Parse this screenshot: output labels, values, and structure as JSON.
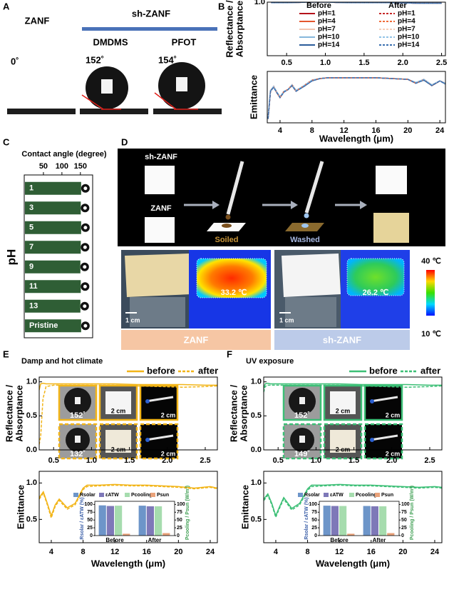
{
  "panel_labels": [
    "A",
    "B",
    "C",
    "D",
    "E",
    "F"
  ],
  "panel_a": {
    "uncoated": "ZANF",
    "coated": "sh-ZANF",
    "agents": [
      "DMDMS",
      "PFOT"
    ],
    "angles": [
      "0˚",
      "152˚",
      "154˚"
    ]
  },
  "panel_d": {
    "sample_labels": [
      "sh-ZANF",
      "ZANF"
    ],
    "steps": [
      "Soiled",
      "Washed"
    ],
    "temperatures": [
      "33.2 ℃",
      "26.2 ℃"
    ],
    "scale_bars": [
      "1 cm",
      "1 cm"
    ],
    "colorbar": [
      "40 ℃",
      "10 ℃"
    ],
    "captions": [
      "ZANF",
      "sh-ZANF"
    ]
  },
  "panel_e": {
    "angles": [
      "152˚",
      "132˚"
    ],
    "scales": [
      "2 cm",
      "2 cm",
      "2 cm",
      "2 cm"
    ]
  },
  "panel_f": {
    "angles": [
      "152˚",
      "149˚"
    ],
    "scales": [
      "2 cm",
      "2 cm",
      "2 cm",
      "2 cm"
    ]
  },
  "chart_data": [
    {
      "type": "line",
      "x": [
        0.3,
        0.5,
        0.8,
        1.0,
        1.3,
        1.6,
        1.9,
        2.2,
        2.5
      ],
      "xlim": [
        0.25,
        2.55
      ],
      "xticks": [
        0.5,
        {
          "value": 1,
          "label": "1.0"
        },
        1.5,
        {
          "value": 2,
          "label": "2.0"
        },
        2.5
      ],
      "ylim": [
        0,
        1
      ],
      "yticks": [
        {
          "value": 1,
          "label": "1.0"
        }
      ],
      "ylabel": [
        "Reflectance /",
        "Absorptance"
      ],
      "legend_groups": [
        "Before",
        "After"
      ],
      "series": [
        {
          "name": "pH=1",
          "color": "#b5121b",
          "values": [
            0.99,
            0.99,
            1.0,
            1.0,
            0.99,
            0.99,
            0.99,
            0.98,
            0.98
          ]
        },
        {
          "name": "pH=4",
          "color": "#e4572e",
          "values": [
            0.99,
            0.99,
            1.0,
            1.0,
            0.99,
            0.99,
            0.99,
            0.98,
            0.98
          ]
        },
        {
          "name": "pH=7",
          "color": "#f1c4b0",
          "values": [
            0.99,
            0.99,
            1.0,
            1.0,
            0.99,
            0.99,
            0.99,
            0.98,
            0.98
          ]
        },
        {
          "name": "pH=10",
          "color": "#86b7db",
          "values": [
            0.99,
            0.99,
            1.0,
            1.0,
            0.99,
            0.99,
            0.99,
            0.98,
            0.98
          ]
        },
        {
          "name": "pH=14",
          "color": "#2b5d9b",
          "values": [
            0.99,
            0.99,
            1.0,
            1.0,
            0.99,
            0.99,
            0.99,
            0.98,
            0.98
          ]
        },
        {
          "name": "pH=1",
          "color": "#c62828",
          "dash": true,
          "values": [
            0.99,
            0.99,
            1.0,
            1.0,
            0.99,
            0.99,
            0.99,
            0.98,
            0.98
          ]
        },
        {
          "name": "pH=4",
          "color": "#ef6c3a",
          "dash": true,
          "values": [
            0.99,
            0.99,
            1.0,
            1.0,
            0.99,
            0.99,
            0.99,
            0.98,
            0.98
          ]
        },
        {
          "name": "pH=7",
          "color": "#f5cdb8",
          "dash": true,
          "values": [
            0.99,
            0.99,
            1.0,
            1.0,
            0.99,
            0.99,
            0.99,
            0.98,
            0.98
          ]
        },
        {
          "name": "pH=10",
          "color": "#92c3e6",
          "dash": true,
          "values": [
            0.99,
            0.99,
            1.0,
            1.0,
            0.99,
            0.99,
            0.99,
            0.98,
            0.98
          ]
        },
        {
          "name": "pH=14",
          "color": "#3a6fb0",
          "dash": true,
          "values": [
            0.99,
            0.99,
            1.0,
            1.0,
            0.99,
            0.99,
            0.99,
            0.98,
            0.98
          ]
        }
      ]
    },
    {
      "type": "line",
      "x": [
        2.5,
        2.8,
        3.2,
        3.6,
        4,
        4.5,
        5,
        5.5,
        6,
        7,
        8,
        9,
        10,
        12,
        14,
        16,
        18,
        20,
        21,
        22,
        23,
        24,
        24.7
      ],
      "xlim": [
        2.4,
        24.7
      ],
      "xticks": [
        4,
        8,
        12,
        16,
        20,
        24
      ],
      "ylim": [
        0.4,
        1.05
      ],
      "xlabel": "Wavelength (μm)",
      "ylabel": [
        "Emittance"
      ],
      "series": [
        {
          "color": "#b5121b",
          "values": [
            0.45,
            0.8,
            0.86,
            0.78,
            0.72,
            0.8,
            0.82,
            0.88,
            0.8,
            0.87,
            0.94,
            0.96,
            0.97,
            0.97,
            0.97,
            0.97,
            0.96,
            0.95,
            0.9,
            0.95,
            0.87,
            0.93,
            0.9
          ]
        },
        {
          "color": "#e4572e",
          "values": [
            0.45,
            0.8,
            0.86,
            0.78,
            0.72,
            0.8,
            0.82,
            0.88,
            0.8,
            0.87,
            0.94,
            0.96,
            0.97,
            0.97,
            0.97,
            0.97,
            0.96,
            0.95,
            0.9,
            0.95,
            0.87,
            0.93,
            0.9
          ]
        },
        {
          "color": "#f1c4b0",
          "values": [
            0.46,
            0.81,
            0.86,
            0.79,
            0.73,
            0.8,
            0.82,
            0.88,
            0.81,
            0.87,
            0.94,
            0.96,
            0.97,
            0.97,
            0.97,
            0.97,
            0.96,
            0.95,
            0.91,
            0.95,
            0.88,
            0.93,
            0.9
          ]
        },
        {
          "color": "#86b7db",
          "values": [
            0.46,
            0.81,
            0.86,
            0.79,
            0.73,
            0.8,
            0.82,
            0.88,
            0.81,
            0.87,
            0.94,
            0.96,
            0.97,
            0.97,
            0.97,
            0.97,
            0.96,
            0.95,
            0.91,
            0.95,
            0.88,
            0.93,
            0.9
          ]
        },
        {
          "color": "#2b5d9b",
          "values": [
            0.45,
            0.8,
            0.85,
            0.78,
            0.72,
            0.79,
            0.82,
            0.87,
            0.8,
            0.86,
            0.93,
            0.96,
            0.97,
            0.97,
            0.97,
            0.97,
            0.96,
            0.95,
            0.9,
            0.94,
            0.87,
            0.93,
            0.89
          ]
        },
        {
          "color": "#c62828",
          "dash": true,
          "values": [
            0.45,
            0.8,
            0.86,
            0.78,
            0.72,
            0.8,
            0.82,
            0.88,
            0.8,
            0.87,
            0.94,
            0.96,
            0.97,
            0.97,
            0.97,
            0.97,
            0.96,
            0.95,
            0.9,
            0.95,
            0.87,
            0.93,
            0.9
          ]
        },
        {
          "color": "#ef6c3a",
          "dash": true,
          "values": [
            0.45,
            0.8,
            0.86,
            0.78,
            0.72,
            0.8,
            0.82,
            0.88,
            0.8,
            0.87,
            0.94,
            0.96,
            0.97,
            0.97,
            0.97,
            0.97,
            0.96,
            0.95,
            0.9,
            0.95,
            0.87,
            0.93,
            0.9
          ]
        },
        {
          "color": "#f5cdb8",
          "dash": true,
          "values": [
            0.46,
            0.81,
            0.86,
            0.79,
            0.73,
            0.8,
            0.82,
            0.88,
            0.81,
            0.87,
            0.94,
            0.96,
            0.97,
            0.97,
            0.97,
            0.97,
            0.96,
            0.95,
            0.91,
            0.95,
            0.88,
            0.93,
            0.9
          ]
        },
        {
          "color": "#92c3e6",
          "dash": true,
          "values": [
            0.46,
            0.81,
            0.86,
            0.79,
            0.73,
            0.8,
            0.82,
            0.88,
            0.81,
            0.87,
            0.94,
            0.96,
            0.97,
            0.97,
            0.97,
            0.97,
            0.96,
            0.95,
            0.91,
            0.95,
            0.88,
            0.93,
            0.9
          ]
        },
        {
          "color": "#3a6fb0",
          "dash": true,
          "values": [
            0.45,
            0.8,
            0.85,
            0.78,
            0.72,
            0.79,
            0.82,
            0.87,
            0.8,
            0.86,
            0.93,
            0.96,
            0.97,
            0.97,
            0.97,
            0.97,
            0.96,
            0.95,
            0.9,
            0.94,
            0.87,
            0.93,
            0.89
          ]
        }
      ]
    },
    {
      "type": "bar",
      "orientation": "horizontal",
      "xlabel": "Contact angle (degree)",
      "ylabel": "pH",
      "categories": [
        "1",
        "3",
        "5",
        "7",
        "9",
        "11",
        "13",
        "Pristine"
      ],
      "values": [
        152,
        151,
        152,
        151,
        150,
        151,
        150,
        152
      ],
      "xlim": [
        0,
        160
      ],
      "xticks": [
        50,
        100,
        150
      ],
      "color": "#2f5e35"
    },
    {
      "type": "line",
      "title": "Damp and hot climate",
      "legend": true,
      "x": [
        0.31,
        0.33,
        0.36,
        0.4,
        0.5,
        0.7,
        1.0,
        1.3,
        1.6,
        1.9,
        2.2,
        2.5,
        2.66
      ],
      "xlim": [
        0.31,
        2.66
      ],
      "xticks": [
        0.5,
        {
          "value": 1,
          "label": "1.0"
        },
        1.5,
        {
          "value": 2,
          "label": "2.0"
        },
        2.5
      ],
      "ylim": [
        0,
        1.07
      ],
      "yticks": [
        {
          "value": 0,
          "label": "0.0"
        },
        0.5,
        {
          "value": 1,
          "label": "1.0"
        }
      ],
      "ylabel": [
        "Reflectance /",
        "Absorptance"
      ],
      "series": [
        {
          "name": "before",
          "color": "#f2b519",
          "values": [
            0.88,
            0.97,
            0.98,
            0.97,
            0.97,
            0.97,
            0.97,
            0.97,
            0.96,
            0.96,
            0.96,
            0.95,
            0.95
          ]
        },
        {
          "name": "after",
          "color": "#f2b519",
          "dash": true,
          "values": [
            0.08,
            0.2,
            0.75,
            0.93,
            0.95,
            0.95,
            0.95,
            0.95,
            0.94,
            0.93,
            0.92,
            0.93,
            0.94
          ]
        }
      ]
    },
    {
      "type": "line",
      "x": [
        2.5,
        3,
        3.5,
        4,
        4.5,
        5,
        6,
        7,
        8,
        8.5,
        10,
        12,
        14,
        16,
        18,
        20,
        22,
        24,
        24.9
      ],
      "xlim": [
        2.48,
        24.9
      ],
      "xticks": [
        4,
        8,
        12,
        16,
        20,
        24
      ],
      "ylim": [
        0.18,
        1.16
      ],
      "yticks": [
        0.5,
        {
          "value": 1,
          "label": "1.0"
        }
      ],
      "xlabel": "Wavelength (μm)",
      "ylabel": [
        "Emittance"
      ],
      "series": [
        {
          "color": "#f2b519",
          "values": [
            0.8,
            0.88,
            0.72,
            0.55,
            0.7,
            0.78,
            0.66,
            0.72,
            0.93,
            0.97,
            0.97,
            0.98,
            0.97,
            0.97,
            0.96,
            0.95,
            0.93,
            0.95,
            0.93
          ]
        },
        {
          "color": "#f2b519",
          "dash": true,
          "values": [
            0.78,
            0.86,
            0.7,
            0.52,
            0.68,
            0.76,
            0.64,
            0.7,
            0.91,
            0.95,
            0.96,
            0.97,
            0.96,
            0.96,
            0.95,
            0.94,
            0.92,
            0.94,
            0.92
          ]
        }
      ]
    },
    {
      "type": "bar",
      "categories": [
        "Before",
        "After"
      ],
      "ylim": [
        0,
        110
      ],
      "yticks": [
        0,
        25,
        50,
        75,
        100
      ],
      "y2lim": [
        0,
        110
      ],
      "y2ticks": [
        0,
        25,
        50,
        75,
        100
      ],
      "ylabel": "Rsolar / εATW (%)",
      "y2label": "Pcooling / Psun (W/m²)",
      "series": [
        {
          "name": "Rsolar",
          "color": "#6d95c9",
          "values": [
            97,
            96
          ]
        },
        {
          "name": "εATW",
          "color": "#7e78b8",
          "values": [
            95,
            94
          ]
        },
        {
          "name": "Pcooling",
          "color": "#a6dcae",
          "axis": "y2",
          "values": [
            96,
            94
          ]
        },
        {
          "name": "Psun",
          "color": "#e9a27a",
          "axis": "y2",
          "values": [
            6,
            8
          ]
        }
      ]
    },
    {
      "type": "line",
      "title": "UV exposure",
      "legend": true,
      "x": [
        0.31,
        0.33,
        0.36,
        0.4,
        0.5,
        0.7,
        1.0,
        1.3,
        1.6,
        1.9,
        2.2,
        2.5,
        2.66
      ],
      "xlim": [
        0.31,
        2.66
      ],
      "xticks": [
        0.5,
        {
          "value": 1,
          "label": "1.0"
        },
        1.5,
        {
          "value": 2,
          "label": "2.0"
        },
        2.5
      ],
      "ylim": [
        0,
        1.07
      ],
      "yticks": [
        {
          "value": 0,
          "label": "0.0"
        },
        0.5,
        {
          "value": 1,
          "label": "1.0"
        }
      ],
      "ylabel": [
        "Reflectance /",
        "Absorptance"
      ],
      "series": [
        {
          "name": "before",
          "color": "#3cbf76",
          "values": [
            0.9,
            0.97,
            0.98,
            0.97,
            0.97,
            0.97,
            0.97,
            0.97,
            0.96,
            0.96,
            0.96,
            0.95,
            0.95
          ]
        },
        {
          "name": "after",
          "color": "#3cbf76",
          "dash": true,
          "values": [
            0.85,
            0.93,
            0.95,
            0.95,
            0.95,
            0.95,
            0.95,
            0.95,
            0.94,
            0.93,
            0.92,
            0.93,
            0.94
          ]
        }
      ]
    },
    {
      "type": "line",
      "x": [
        2.5,
        3,
        3.5,
        4,
        4.5,
        5,
        6,
        7,
        8,
        8.5,
        10,
        12,
        14,
        16,
        18,
        20,
        22,
        24,
        24.9
      ],
      "xlim": [
        2.48,
        24.9
      ],
      "xticks": [
        4,
        8,
        12,
        16,
        20,
        24
      ],
      "ylim": [
        0.18,
        1.16
      ],
      "yticks": [
        0.5,
        {
          "value": 1,
          "label": "1.0"
        }
      ],
      "xlabel": "Wavelength (μm)",
      "ylabel": [
        "Emittance"
      ],
      "series": [
        {
          "color": "#3cbf76",
          "values": [
            0.78,
            0.85,
            0.72,
            0.55,
            0.68,
            0.8,
            0.65,
            0.72,
            0.92,
            0.97,
            0.97,
            0.98,
            0.97,
            0.97,
            0.96,
            0.95,
            0.94,
            0.95,
            0.94
          ]
        },
        {
          "color": "#3cbf76",
          "dash": true,
          "values": [
            0.76,
            0.83,
            0.7,
            0.53,
            0.66,
            0.78,
            0.63,
            0.7,
            0.9,
            0.95,
            0.96,
            0.97,
            0.96,
            0.96,
            0.95,
            0.94,
            0.93,
            0.94,
            0.93
          ]
        }
      ]
    },
    {
      "type": "bar",
      "categories": [
        "Before",
        "After"
      ],
      "ylim": [
        0,
        110
      ],
      "yticks": [
        0,
        25,
        50,
        75,
        100
      ],
      "y2lim": [
        0,
        110
      ],
      "y2ticks": [
        0,
        25,
        50,
        75,
        100
      ],
      "ylabel": "Rsolar / εATW (%)",
      "y2label": "Pcooling / Psun (W/m²)",
      "series": [
        {
          "name": "Rsolar",
          "color": "#6d95c9",
          "values": [
            96,
            95
          ]
        },
        {
          "name": "εATW",
          "color": "#7e78b8",
          "values": [
            95,
            94
          ]
        },
        {
          "name": "Pcooling",
          "color": "#a6dcae",
          "axis": "y2",
          "values": [
            95,
            94
          ]
        },
        {
          "name": "Psun",
          "color": "#e9a27a",
          "axis": "y2",
          "values": [
            6,
            8
          ]
        }
      ]
    }
  ]
}
